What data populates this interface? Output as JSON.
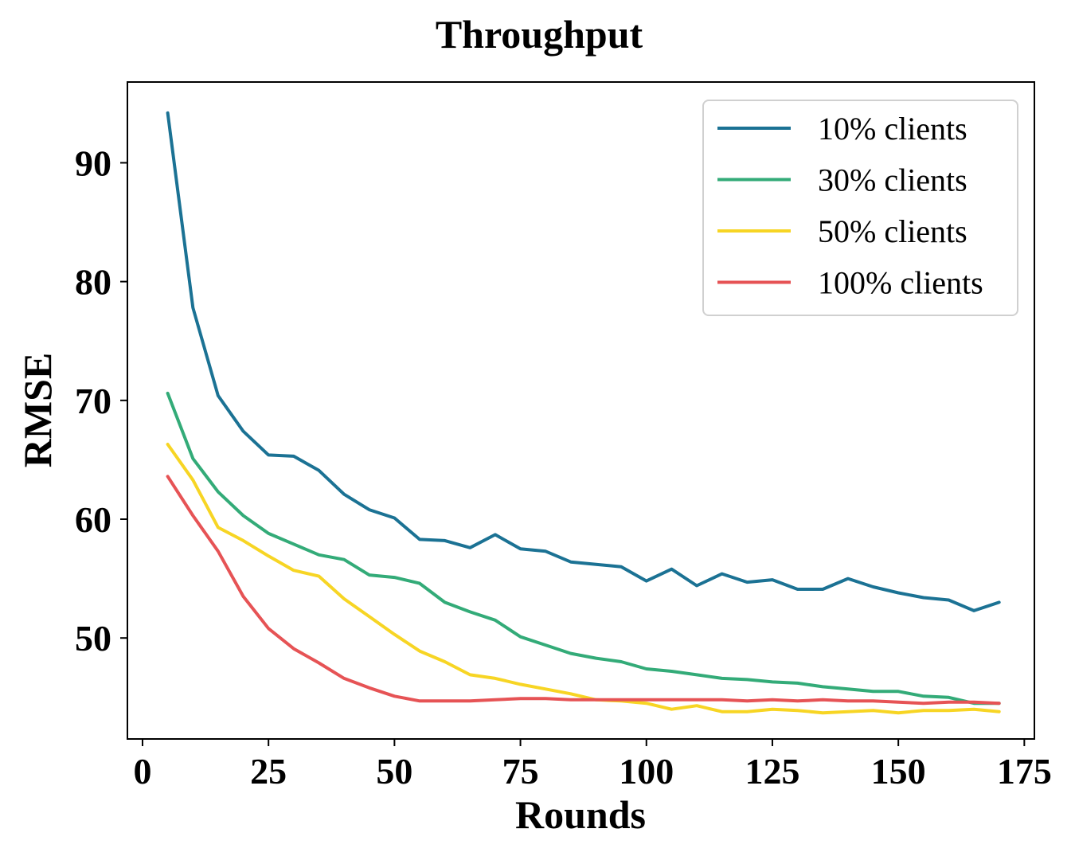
{
  "chart_data": {
    "type": "line",
    "title": "Throughput",
    "xlabel": "Rounds",
    "ylabel": "RMSE",
    "xlim": [
      -3,
      177
    ],
    "ylim": [
      41.5,
      96.8
    ],
    "xticks": [
      0,
      25,
      50,
      75,
      100,
      125,
      150,
      175
    ],
    "yticks": [
      50,
      60,
      70,
      80,
      90
    ],
    "grid": false,
    "legend_position": "top-right",
    "x": [
      5,
      10,
      15,
      20,
      25,
      30,
      35,
      40,
      45,
      50,
      55,
      60,
      65,
      70,
      75,
      80,
      85,
      90,
      95,
      100,
      105,
      110,
      115,
      120,
      125,
      130,
      135,
      140,
      145,
      150,
      155,
      160,
      165,
      170
    ],
    "series": [
      {
        "name": "10% clients",
        "color": "#1b7294",
        "values": [
          94.2,
          77.8,
          70.4,
          67.4,
          65.4,
          65.3,
          64.1,
          62.1,
          60.8,
          60.1,
          58.3,
          58.2,
          57.6,
          58.7,
          57.5,
          57.3,
          56.4,
          56.2,
          56.0,
          54.8,
          55.8,
          54.4,
          55.4,
          54.7,
          54.9,
          54.1,
          54.1,
          55.0,
          54.3,
          53.8,
          53.4,
          53.2,
          52.3,
          53.0
        ]
      },
      {
        "name": "30% clients",
        "color": "#33ab78",
        "values": [
          70.6,
          65.1,
          62.3,
          60.3,
          58.8,
          57.9,
          57.0,
          56.6,
          55.3,
          55.1,
          54.6,
          53.0,
          52.2,
          51.5,
          50.1,
          49.4,
          48.7,
          48.3,
          48.0,
          47.4,
          47.2,
          46.9,
          46.6,
          46.5,
          46.3,
          46.2,
          45.9,
          45.7,
          45.5,
          45.5,
          45.1,
          45.0,
          44.5,
          44.5
        ]
      },
      {
        "name": "50% clients",
        "color": "#f7d524",
        "values": [
          66.3,
          63.3,
          59.3,
          58.2,
          56.9,
          55.7,
          55.2,
          53.3,
          51.8,
          50.3,
          48.9,
          48.0,
          46.9,
          46.6,
          46.1,
          45.7,
          45.3,
          44.8,
          44.7,
          44.5,
          44.0,
          44.3,
          43.8,
          43.8,
          44.0,
          43.9,
          43.7,
          43.8,
          43.9,
          43.7,
          43.9,
          43.9,
          44.0,
          43.8
        ]
      },
      {
        "name": "100% clients",
        "color": "#e65355",
        "values": [
          63.6,
          60.3,
          57.3,
          53.5,
          50.8,
          49.1,
          47.9,
          46.6,
          45.8,
          45.1,
          44.7,
          44.7,
          44.7,
          44.8,
          44.9,
          44.9,
          44.8,
          44.8,
          44.8,
          44.8,
          44.8,
          44.8,
          44.8,
          44.7,
          44.8,
          44.7,
          44.8,
          44.7,
          44.7,
          44.6,
          44.5,
          44.6,
          44.6,
          44.5
        ]
      }
    ]
  }
}
